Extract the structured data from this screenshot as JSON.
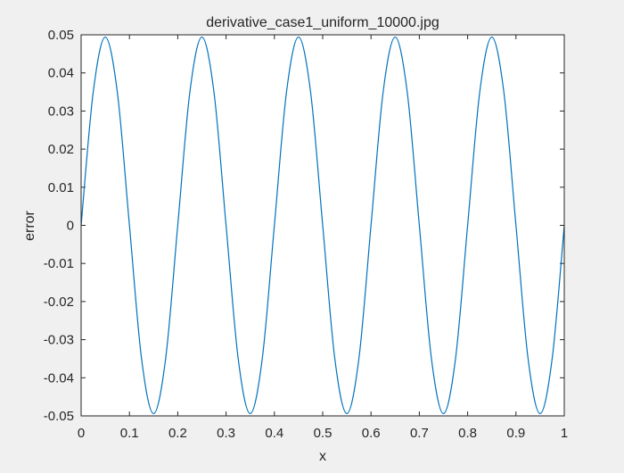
{
  "chart_data": {
    "type": "line",
    "title": "derivative_case1_uniform_10000.jpg",
    "xlabel": "x",
    "ylabel": "error",
    "xlim": [
      0,
      1
    ],
    "ylim": [
      -0.05,
      0.05
    ],
    "grid": false,
    "x_ticks": [
      0,
      0.1,
      0.2,
      0.3,
      0.4,
      0.5,
      0.6,
      0.7,
      0.8,
      0.9,
      1
    ],
    "x_tick_labels": [
      "0",
      "0.1",
      "0.2",
      "0.3",
      "0.4",
      "0.5",
      "0.6",
      "0.7",
      "0.8",
      "0.9",
      "1"
    ],
    "y_ticks": [
      -0.05,
      -0.04,
      -0.03,
      -0.02,
      -0.01,
      0,
      0.01,
      0.02,
      0.03,
      0.04,
      0.05
    ],
    "y_tick_labels": [
      "-0.05",
      "-0.04",
      "-0.03",
      "-0.02",
      "-0.01",
      "0",
      "0.01",
      "0.02",
      "0.03",
      "0.04",
      "0.05"
    ],
    "series": [
      {
        "color": "#0072bd",
        "x": [
          0,
          0.025,
          0.05,
          0.075,
          0.1,
          0.125,
          0.15,
          0.175,
          0.2,
          0.225,
          0.25,
          0.275,
          0.3,
          0.325,
          0.35,
          0.375,
          0.4,
          0.425,
          0.45,
          0.475,
          0.5,
          0.525,
          0.55,
          0.575,
          0.6,
          0.625,
          0.65,
          0.675,
          0.7,
          0.725,
          0.75,
          0.775,
          0.8,
          0.825,
          0.85,
          0.875,
          0.9,
          0.925,
          0.95,
          0.975,
          1
        ],
        "y": [
          0,
          0.0349,
          0.0494,
          0.0349,
          0,
          -0.0349,
          -0.0494,
          -0.0349,
          0,
          0.0349,
          0.0494,
          0.0349,
          0,
          -0.0349,
          -0.0494,
          -0.0349,
          0,
          0.0349,
          0.0494,
          0.0349,
          0,
          -0.0349,
          -0.0494,
          -0.0349,
          0,
          0.0349,
          0.0494,
          0.0349,
          0,
          -0.0349,
          -0.0494,
          -0.0349,
          0,
          0.0349,
          0.0494,
          0.0349,
          0,
          -0.0349,
          -0.0494,
          -0.0349,
          0
        ]
      }
    ]
  }
}
